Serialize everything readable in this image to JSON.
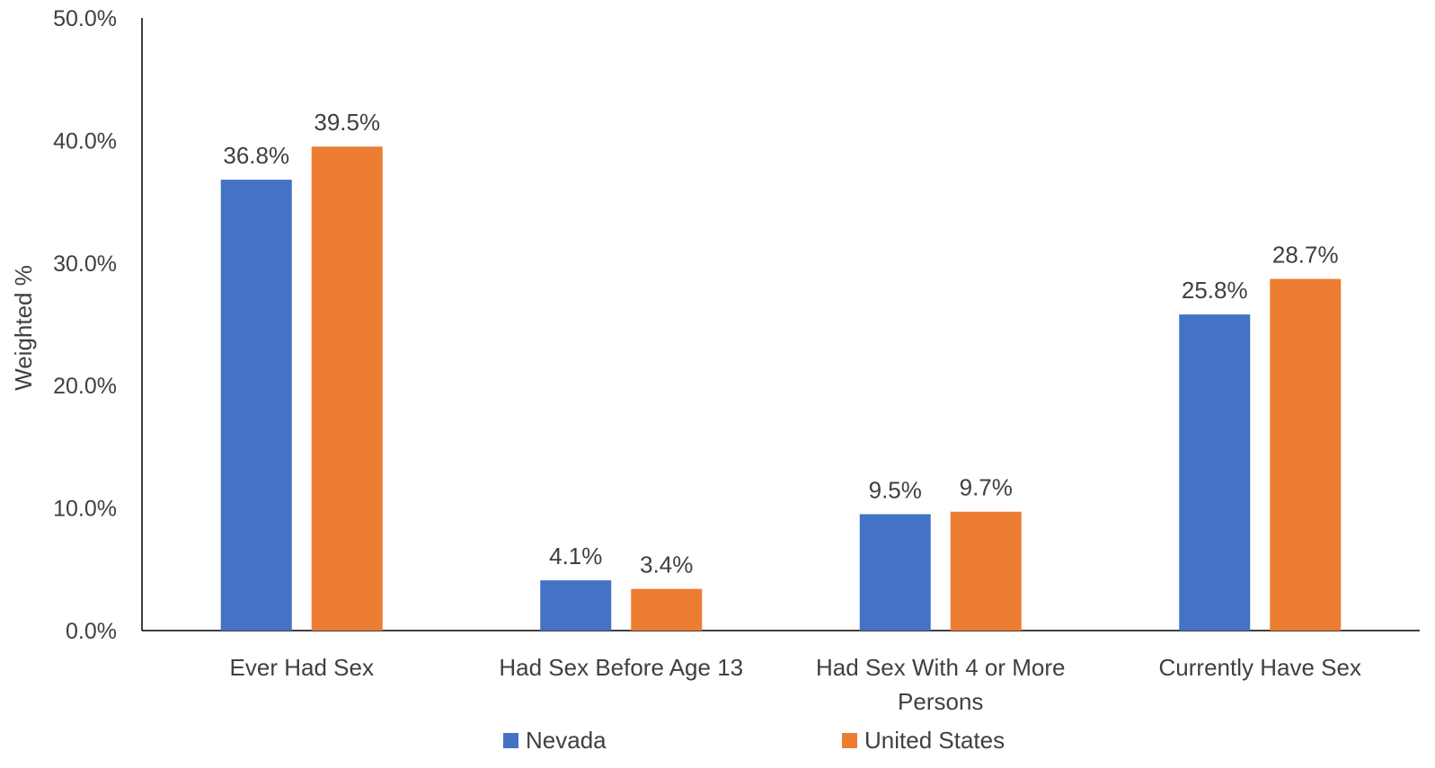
{
  "chart_data": {
    "type": "bar",
    "title": "",
    "xlabel": "",
    "ylabel": "Weighted %",
    "ylim": [
      0,
      50
    ],
    "yticks": [
      "0.0%",
      "10.0%",
      "20.0%",
      "30.0%",
      "40.0%",
      "50.0%"
    ],
    "categories": [
      [
        "Ever Had Sex"
      ],
      [
        "Had Sex Before Age 13"
      ],
      [
        "Had Sex With 4 or More",
        "Persons"
      ],
      [
        "Currently Have Sex"
      ]
    ],
    "series": [
      {
        "name": "Nevada",
        "color": "#4472C4",
        "values": [
          36.8,
          4.1,
          9.5,
          25.8
        ],
        "labels": [
          "36.8%",
          "4.1%",
          "9.5%",
          "25.8%"
        ]
      },
      {
        "name": "United States",
        "color": "#ED7D31",
        "values": [
          39.5,
          3.4,
          9.7,
          28.7
        ],
        "labels": [
          "39.5%",
          "3.4%",
          "9.7%",
          "28.7%"
        ]
      }
    ],
    "grid": false,
    "legend": "bottom"
  }
}
